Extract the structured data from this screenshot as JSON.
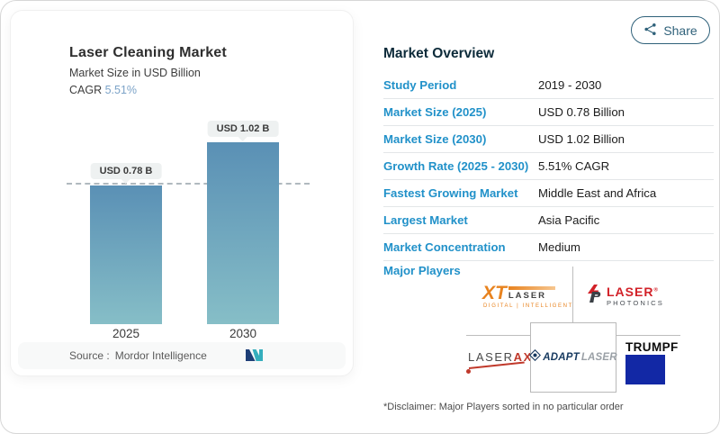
{
  "share": {
    "label": "Share"
  },
  "chart_card": {
    "title": "Laser Cleaning Market",
    "subtitle": "Market Size in USD Billion",
    "cagr_label": "CAGR ",
    "cagr_value": "5.51%",
    "source_label": "Source :",
    "source_value": "Mordor Intelligence"
  },
  "chart_data": {
    "type": "bar",
    "title": "Laser Cleaning Market",
    "ylabel": "Market Size in USD Billion",
    "categories": [
      "2025",
      "2030"
    ],
    "values": [
      0.78,
      1.02
    ],
    "value_labels": [
      "USD 0.78 B",
      "USD 1.02 B"
    ],
    "ylim": [
      0,
      1.02
    ],
    "dashed_reference_value": 0.78,
    "bar_gradient": [
      "#5a90b5",
      "#86bec7"
    ],
    "grid": false,
    "legend": "none"
  },
  "overview": {
    "title": "Market Overview",
    "rows": [
      {
        "label": "Study Period",
        "value": "2019 - 2030"
      },
      {
        "label": "Market Size (2025)",
        "value": "USD 0.78 Billion"
      },
      {
        "label": "Market Size (2030)",
        "value": "USD 1.02 Billion"
      },
      {
        "label": "Growth Rate (2025 - 2030)",
        "value": "5.51% CAGR"
      },
      {
        "label": "Fastest Growing Market",
        "value": "Middle East and Africa"
      },
      {
        "label": "Largest Market",
        "value": "Asia Pacific"
      },
      {
        "label": "Market Concentration",
        "value": "Medium"
      }
    ],
    "major_players_label": "Major Players",
    "disclaimer": "*Disclaimer: Major Players sorted in no particular order"
  },
  "players": {
    "xt_laser": {
      "xt": "XT",
      "laser": "LASER",
      "sub": "DIGITAL | INTELLIGENT"
    },
    "laser_photonics": {
      "line1": "LASER",
      "reg": "®",
      "line2": "PHOTONICS"
    },
    "laserax": {
      "laser": "LASER",
      "ax": "AX"
    },
    "adapt_laser": {
      "adapt": "ADAPT",
      "laser": "LASER"
    },
    "trumpf": {
      "name": "TRUMPF"
    }
  },
  "colors": {
    "accent_blue": "#2191c9",
    "header_navy": "#0d2b3a",
    "cagr_blue": "#7ca3c8",
    "bar_top": "#5a90b5",
    "bar_bottom": "#86bec7",
    "share_teal": "#2f617a",
    "trumpf_blue": "#1228a5",
    "logo_red": "#d22128",
    "logo_orange": "#e8831f"
  }
}
